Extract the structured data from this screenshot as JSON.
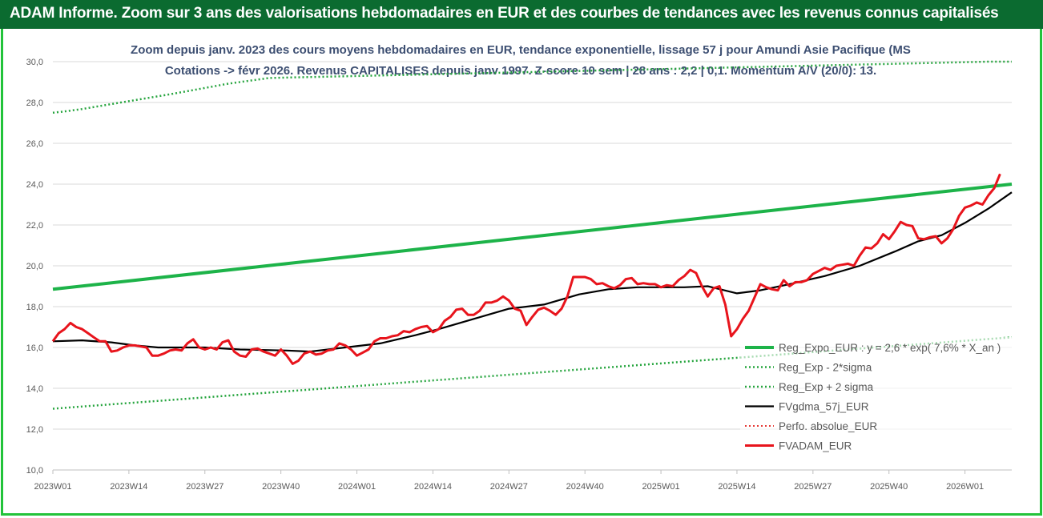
{
  "header": {
    "title": "ADAM Informe. Zoom sur 3 ans des valorisations hebdomadaires en EUR et des courbes de tendances avec les revenus connus capitalisés"
  },
  "chart_data": {
    "type": "line",
    "title": "Zoom depuis janv. 2023 des cours moyens hebdomadaires en EUR, tendance exponentielle, lissage 57 j pour Amundi Asie Pacifique (MS Cotations -> févr 2026. Revenus CAPITALISES depuis janv 1997. Z-score 10 sem | 28 ans : 2,2 | 0,1. Momentum A/V (20/0): 13.",
    "ylim": [
      10,
      30
    ],
    "yticks": [
      "10,0",
      "12,0",
      "14,0",
      "16,0",
      "18,0",
      "20,0",
      "22,0",
      "24,0",
      "26,0",
      "28,0",
      "30,0"
    ],
    "x_tick_labels": [
      "2023W01",
      "2023W14",
      "2023W27",
      "2023W40",
      "2024W01",
      "2024W14",
      "2024W27",
      "2024W40",
      "2025W01",
      "2025W14",
      "2025W27",
      "2025W40",
      "2026W01"
    ],
    "x_tick_weeks": [
      0,
      13,
      26,
      39,
      52,
      65,
      78,
      91,
      104,
      117,
      130,
      143,
      156
    ],
    "x_range_weeks": [
      0,
      164
    ],
    "grid": "horizontal",
    "legend_position": "right",
    "series": [
      {
        "name": "Reg_Expo_EUR : y = 2,6 * exp( 7,6% * X_an )",
        "style": "solid",
        "color": "#1db349",
        "width": 4,
        "points": [
          [
            0,
            18.85
          ],
          [
            164,
            24.0
          ]
        ]
      },
      {
        "name": "Reg_Exp - 2*sigma",
        "style": "dotted",
        "color": "#27a53f",
        "width": 2.5,
        "points": [
          [
            0,
            13.0
          ],
          [
            164,
            16.5
          ]
        ]
      },
      {
        "name": "Reg_Exp + 2 sigma",
        "style": "dotted",
        "color": "#27a53f",
        "width": 2.5,
        "points": [
          [
            0,
            27.5
          ],
          [
            2,
            27.56
          ],
          [
            5,
            27.68
          ],
          [
            10,
            27.92
          ],
          [
            15,
            28.16
          ],
          [
            20,
            28.4
          ],
          [
            25,
            28.66
          ],
          [
            30,
            28.92
          ],
          [
            37,
            29.2
          ],
          [
            160,
            30.0
          ],
          [
            164,
            30.0
          ]
        ]
      },
      {
        "name": "FVgdma_57j_EUR",
        "style": "solid",
        "color": "#000000",
        "width": 2.2,
        "points": [
          [
            0,
            16.3
          ],
          [
            5,
            16.35
          ],
          [
            10,
            16.25
          ],
          [
            14,
            16.1
          ],
          [
            18,
            16.0
          ],
          [
            26,
            16.0
          ],
          [
            32,
            15.9
          ],
          [
            40,
            15.85
          ],
          [
            44,
            15.8
          ],
          [
            50,
            16.0
          ],
          [
            56,
            16.2
          ],
          [
            62,
            16.6
          ],
          [
            66,
            16.9
          ],
          [
            72,
            17.4
          ],
          [
            78,
            17.9
          ],
          [
            84,
            18.1
          ],
          [
            90,
            18.6
          ],
          [
            95,
            18.85
          ],
          [
            100,
            18.95
          ],
          [
            108,
            18.95
          ],
          [
            112,
            19.0
          ],
          [
            117,
            18.65
          ],
          [
            121,
            18.8
          ],
          [
            126,
            19.1
          ],
          [
            132,
            19.5
          ],
          [
            138,
            20.0
          ],
          [
            144,
            20.7
          ],
          [
            148,
            21.2
          ],
          [
            152,
            21.5
          ],
          [
            156,
            22.1
          ],
          [
            160,
            22.8
          ],
          [
            164,
            23.6
          ]
        ]
      },
      {
        "name": "Perfo. absolue_EUR",
        "style": "dotted",
        "color": "#e53935",
        "width": 2,
        "points": []
      },
      {
        "name": "FVADAM_EUR",
        "style": "solid",
        "color": "#e8141c",
        "width": 3,
        "points": [
          [
            0,
            16.3
          ],
          [
            1,
            16.7
          ],
          [
            2,
            16.9
          ],
          [
            3,
            17.2
          ],
          [
            4,
            17.0
          ],
          [
            5,
            16.9
          ],
          [
            6,
            16.7
          ],
          [
            7,
            16.5
          ],
          [
            8,
            16.3
          ],
          [
            9,
            16.3
          ],
          [
            10,
            15.8
          ],
          [
            11,
            15.85
          ],
          [
            12,
            16.0
          ],
          [
            13,
            16.1
          ],
          [
            14,
            16.1
          ],
          [
            15,
            16.05
          ],
          [
            16,
            16.0
          ],
          [
            17,
            15.6
          ],
          [
            18,
            15.6
          ],
          [
            19,
            15.7
          ],
          [
            20,
            15.85
          ],
          [
            21,
            15.9
          ],
          [
            22,
            15.85
          ],
          [
            23,
            16.2
          ],
          [
            24,
            16.4
          ],
          [
            25,
            16.0
          ],
          [
            26,
            15.9
          ],
          [
            27,
            16.0
          ],
          [
            28,
            15.9
          ],
          [
            29,
            16.25
          ],
          [
            30,
            16.35
          ],
          [
            31,
            15.8
          ],
          [
            32,
            15.6
          ],
          [
            33,
            15.55
          ],
          [
            34,
            15.9
          ],
          [
            35,
            15.95
          ],
          [
            36,
            15.8
          ],
          [
            37,
            15.7
          ],
          [
            38,
            15.6
          ],
          [
            39,
            15.9
          ],
          [
            40,
            15.6
          ],
          [
            41,
            15.2
          ],
          [
            42,
            15.35
          ],
          [
            43,
            15.7
          ],
          [
            44,
            15.8
          ],
          [
            45,
            15.65
          ],
          [
            46,
            15.7
          ],
          [
            47,
            15.85
          ],
          [
            48,
            15.9
          ],
          [
            49,
            16.2
          ],
          [
            50,
            16.1
          ],
          [
            51,
            15.9
          ],
          [
            52,
            15.6
          ],
          [
            53,
            15.75
          ],
          [
            54,
            15.9
          ],
          [
            55,
            16.3
          ],
          [
            56,
            16.45
          ],
          [
            57,
            16.45
          ],
          [
            58,
            16.55
          ],
          [
            59,
            16.6
          ],
          [
            60,
            16.8
          ],
          [
            61,
            16.75
          ],
          [
            62,
            16.9
          ],
          [
            63,
            17.0
          ],
          [
            64,
            17.05
          ],
          [
            65,
            16.75
          ],
          [
            66,
            16.9
          ],
          [
            67,
            17.3
          ],
          [
            68,
            17.5
          ],
          [
            69,
            17.85
          ],
          [
            70,
            17.9
          ],
          [
            71,
            17.6
          ],
          [
            72,
            17.6
          ],
          [
            73,
            17.8
          ],
          [
            74,
            18.2
          ],
          [
            75,
            18.2
          ],
          [
            76,
            18.3
          ],
          [
            77,
            18.5
          ],
          [
            78,
            18.3
          ],
          [
            79,
            17.9
          ],
          [
            80,
            17.8
          ],
          [
            81,
            17.1
          ],
          [
            82,
            17.5
          ],
          [
            83,
            17.85
          ],
          [
            84,
            17.95
          ],
          [
            85,
            17.8
          ],
          [
            86,
            17.6
          ],
          [
            87,
            17.9
          ],
          [
            88,
            18.5
          ],
          [
            89,
            19.45
          ],
          [
            90,
            19.45
          ],
          [
            91,
            19.45
          ],
          [
            92,
            19.35
          ],
          [
            93,
            19.1
          ],
          [
            94,
            19.15
          ],
          [
            95,
            19.0
          ],
          [
            96,
            18.9
          ],
          [
            97,
            19.05
          ],
          [
            98,
            19.35
          ],
          [
            99,
            19.4
          ],
          [
            100,
            19.1
          ],
          [
            101,
            19.15
          ],
          [
            102,
            19.1
          ],
          [
            103,
            19.1
          ],
          [
            104,
            18.95
          ],
          [
            105,
            19.05
          ],
          [
            106,
            19.0
          ],
          [
            107,
            19.3
          ],
          [
            108,
            19.5
          ],
          [
            109,
            19.8
          ],
          [
            110,
            19.65
          ],
          [
            111,
            19.0
          ],
          [
            112,
            18.5
          ],
          [
            113,
            18.9
          ],
          [
            114,
            19.0
          ],
          [
            115,
            18.1
          ],
          [
            116,
            16.55
          ],
          [
            117,
            16.9
          ],
          [
            118,
            17.4
          ],
          [
            119,
            17.8
          ],
          [
            120,
            18.45
          ],
          [
            121,
            19.1
          ],
          [
            122,
            18.95
          ],
          [
            123,
            18.85
          ],
          [
            124,
            18.8
          ],
          [
            125,
            19.3
          ],
          [
            126,
            19.0
          ],
          [
            127,
            19.2
          ],
          [
            128,
            19.2
          ],
          [
            129,
            19.3
          ],
          [
            130,
            19.6
          ],
          [
            131,
            19.75
          ],
          [
            132,
            19.9
          ],
          [
            133,
            19.8
          ],
          [
            134,
            20.0
          ],
          [
            135,
            20.05
          ],
          [
            136,
            20.1
          ],
          [
            137,
            20.0
          ],
          [
            138,
            20.5
          ],
          [
            139,
            20.9
          ],
          [
            140,
            20.85
          ],
          [
            141,
            21.1
          ],
          [
            142,
            21.55
          ],
          [
            143,
            21.3
          ],
          [
            144,
            21.7
          ],
          [
            145,
            22.15
          ],
          [
            146,
            22.0
          ],
          [
            147,
            21.95
          ],
          [
            148,
            21.35
          ],
          [
            149,
            21.3
          ],
          [
            150,
            21.4
          ],
          [
            151,
            21.45
          ],
          [
            152,
            21.1
          ],
          [
            153,
            21.35
          ],
          [
            154,
            21.8
          ],
          [
            155,
            22.45
          ],
          [
            156,
            22.85
          ],
          [
            157,
            22.95
          ],
          [
            158,
            23.1
          ],
          [
            159,
            23.0
          ],
          [
            160,
            23.45
          ],
          [
            161,
            23.8
          ],
          [
            162,
            24.5
          ]
        ]
      }
    ]
  }
}
